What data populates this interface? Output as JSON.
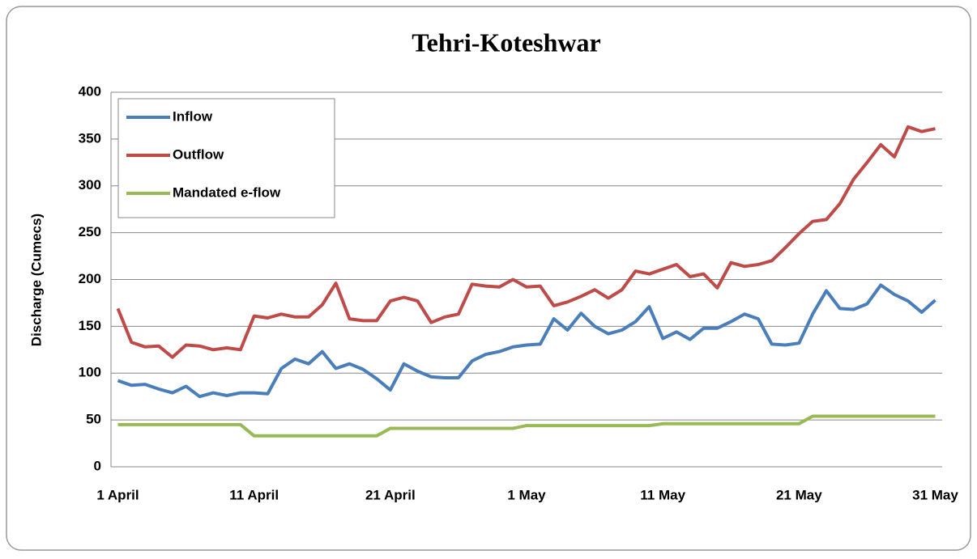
{
  "chart_data": {
    "type": "line",
    "title": "Tehri-Koteshwar",
    "y_label": "Discharge (Cumecs)",
    "categories": [
      "1 April",
      null,
      null,
      null,
      null,
      null,
      null,
      null,
      null,
      null,
      "11 April",
      null,
      null,
      null,
      null,
      null,
      null,
      null,
      null,
      null,
      "21 April",
      null,
      null,
      null,
      null,
      null,
      null,
      null,
      null,
      null,
      "1 May",
      null,
      null,
      null,
      null,
      null,
      null,
      null,
      null,
      null,
      "11 May",
      null,
      null,
      null,
      null,
      null,
      null,
      null,
      null,
      null,
      "21 May",
      null,
      null,
      null,
      null,
      null,
      null,
      null,
      null,
      null,
      "31 May"
    ],
    "series": [
      {
        "name": "Inflow",
        "color": "#4a7ebb",
        "values": [
          92,
          87,
          88,
          83,
          79,
          86,
          75,
          79,
          76,
          79,
          79,
          78,
          105,
          115,
          110,
          123,
          105,
          110,
          104,
          94,
          82,
          110,
          102,
          96,
          95,
          95,
          113,
          120,
          123,
          128,
          130,
          131,
          158,
          146,
          164,
          150,
          142,
          146,
          155,
          171,
          137,
          144,
          136,
          148,
          148,
          155,
          163,
          158,
          131,
          130,
          132,
          163,
          188,
          169,
          168,
          174,
          194,
          184,
          177,
          165,
          178
        ]
      },
      {
        "name": "Outflow",
        "color": "#be4b48",
        "values": [
          169,
          133,
          128,
          129,
          117,
          130,
          129,
          125,
          127,
          125,
          161,
          159,
          163,
          160,
          160,
          173,
          196,
          158,
          156,
          156,
          177,
          181,
          177,
          154,
          160,
          163,
          195,
          193,
          192,
          200,
          192,
          193,
          172,
          176,
          182,
          189,
          180,
          189,
          209,
          206,
          211,
          216,
          203,
          206,
          191,
          218,
          214,
          216,
          220,
          234,
          249,
          262,
          264,
          281,
          307,
          325,
          344,
          331,
          363,
          358,
          361
        ]
      },
      {
        "name": "Mandated e-flow",
        "color": "#98b954",
        "values": [
          45,
          45,
          45,
          45,
          45,
          45,
          45,
          45,
          45,
          45,
          33,
          33,
          33,
          33,
          33,
          33,
          33,
          33,
          33,
          33,
          41,
          41,
          41,
          41,
          41,
          41,
          41,
          41,
          41,
          41,
          44,
          44,
          44,
          44,
          44,
          44,
          44,
          44,
          44,
          44,
          46,
          46,
          46,
          46,
          46,
          46,
          46,
          46,
          46,
          46,
          46,
          54,
          54,
          54,
          54,
          54,
          54,
          54,
          54,
          54,
          54
        ]
      }
    ],
    "ylim": [
      0,
      400
    ],
    "yticks": [
      0,
      50,
      100,
      150,
      200,
      250,
      300,
      350,
      400
    ],
    "grid": true,
    "legend": "top-left"
  }
}
